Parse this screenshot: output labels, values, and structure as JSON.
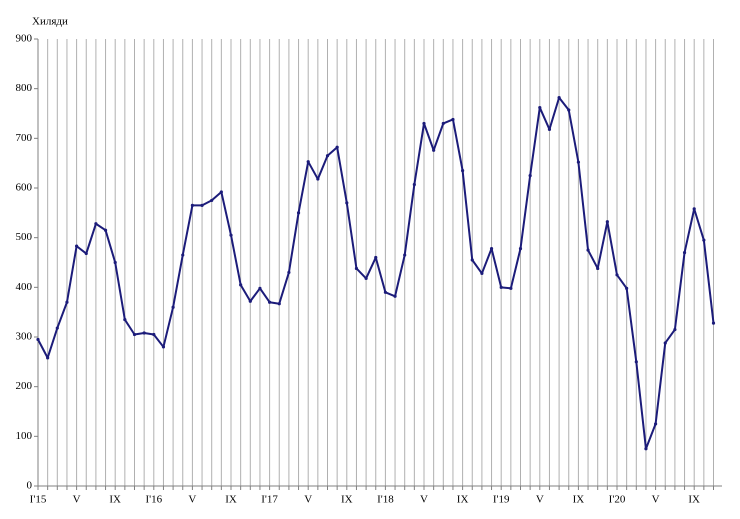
{
  "chart_data": {
    "type": "line",
    "y_label": "Хиляди",
    "categories": [
      "I'15",
      null,
      null,
      null,
      "V",
      null,
      null,
      null,
      "IX",
      null,
      null,
      null,
      "I'16",
      null,
      null,
      null,
      "V",
      null,
      null,
      null,
      "IX",
      null,
      null,
      null,
      "I'17",
      null,
      null,
      null,
      "V",
      null,
      null,
      null,
      "IX",
      null,
      null,
      null,
      "I'18",
      null,
      null,
      null,
      "V",
      null,
      null,
      null,
      "IX",
      null,
      null,
      null,
      "I'19",
      null,
      null,
      null,
      "V",
      null,
      null,
      null,
      "IX",
      null,
      null,
      null,
      "I'20",
      null,
      null,
      null,
      "V",
      null,
      null,
      null,
      "IX",
      null,
      null
    ],
    "values": [
      295,
      258,
      318,
      370,
      483,
      468,
      528,
      515,
      450,
      335,
      305,
      308,
      305,
      280,
      360,
      465,
      565,
      565,
      575,
      592,
      505,
      405,
      372,
      398,
      370,
      367,
      430,
      550,
      653,
      618,
      665,
      682,
      570,
      438,
      418,
      460,
      390,
      382,
      465,
      607,
      730,
      676,
      730,
      738,
      635,
      455,
      428,
      478,
      400,
      398,
      478,
      625,
      762,
      718,
      782,
      757,
      652,
      475,
      438,
      532,
      425,
      398,
      250,
      75,
      125,
      288,
      315,
      470,
      558,
      495,
      328
    ],
    "color": "#1c1c7a",
    "ylim": [
      0,
      900
    ],
    "yticks": [
      0,
      100,
      200,
      300,
      400,
      500,
      600,
      700,
      800,
      900
    ],
    "grid": "vertical"
  }
}
